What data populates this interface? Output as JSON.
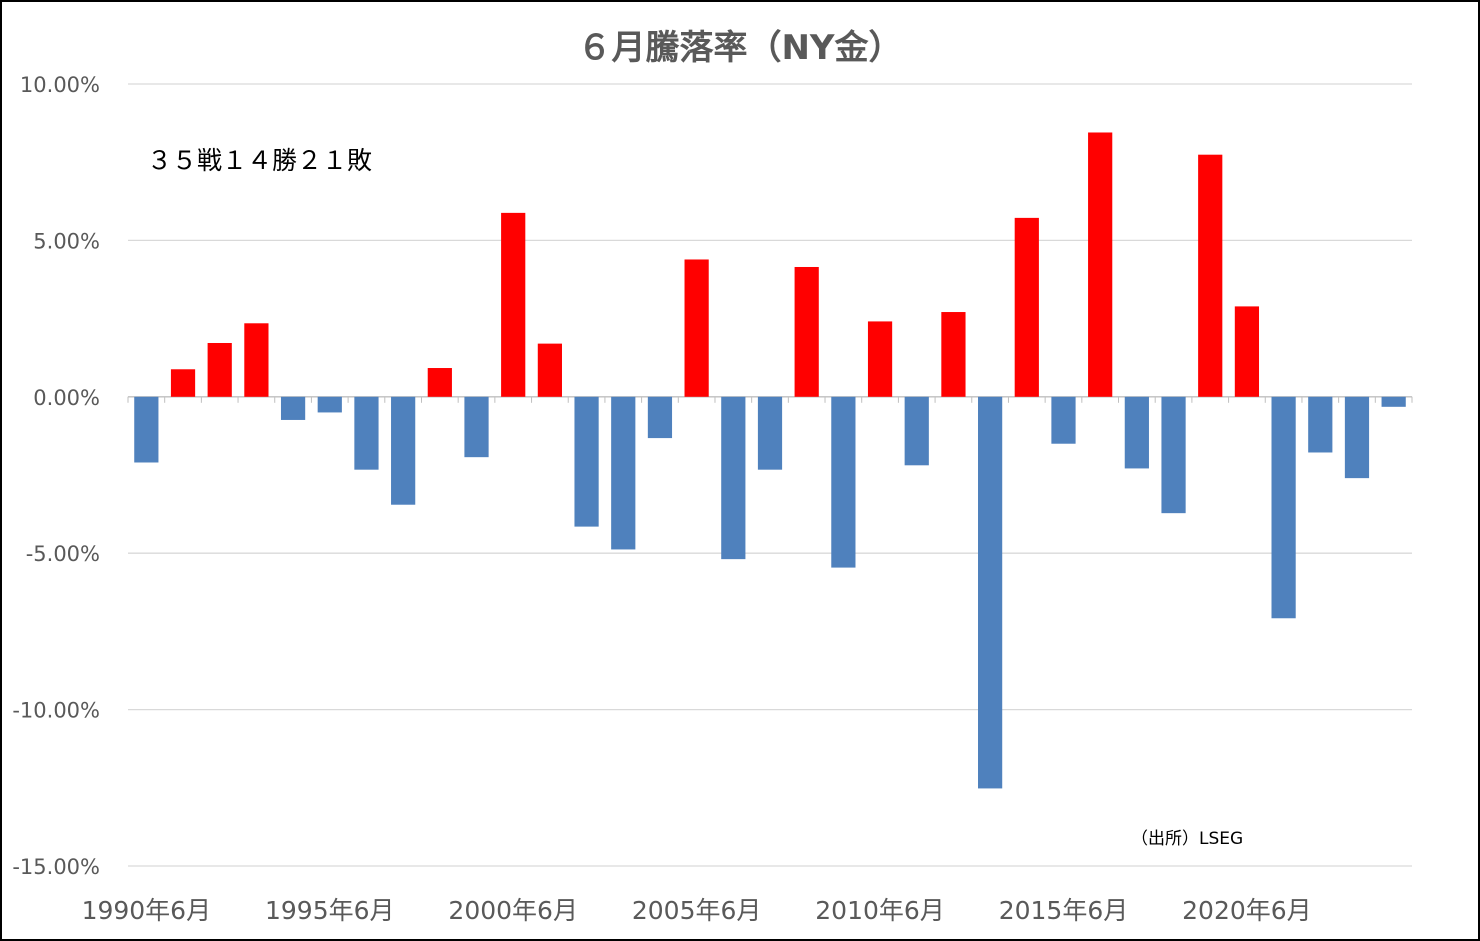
{
  "chart_data": {
    "type": "bar",
    "title": "６月騰落率（NY金）",
    "annotation": "３５戦１４勝２１敗",
    "source": "（出所）LSEG",
    "xlabel": "",
    "ylabel": "",
    "ylim": [
      -15,
      10
    ],
    "y_ticks": [
      10,
      5,
      0,
      -5,
      -10,
      -15
    ],
    "y_tick_labels": [
      "10.00%",
      "5.00%",
      "0.00%",
      "-5.00%",
      "-10.00%",
      "-15.00%"
    ],
    "x_tick_labels": [
      "1990年6月",
      "1995年6月",
      "2000年6月",
      "2005年6月",
      "2010年6月",
      "2015年6月",
      "2020年6月"
    ],
    "grid": true,
    "legend": "none",
    "colors": {
      "positive": "#FF0000",
      "negative": "#4F81BD",
      "grid": "#D9D9D9",
      "text": "#595959"
    },
    "categories": [
      "1990",
      "1991",
      "1992",
      "1993",
      "1994",
      "1995",
      "1996",
      "1997",
      "1998",
      "1999",
      "2000",
      "2001",
      "2002",
      "2003",
      "2004",
      "2005",
      "2006",
      "2007",
      "2008",
      "2009",
      "2010",
      "2011",
      "2012",
      "2013",
      "2014",
      "2015",
      "2016",
      "2017",
      "2018",
      "2019",
      "2020",
      "2021",
      "2022",
      "2023",
      "2024"
    ],
    "values": [
      -2.1,
      0.88,
      1.72,
      2.35,
      -0.74,
      -0.5,
      -2.33,
      -3.45,
      0.92,
      -1.93,
      5.88,
      1.7,
      -4.15,
      -4.88,
      -1.32,
      4.39,
      -5.19,
      -2.33,
      4.15,
      -5.46,
      2.41,
      -2.19,
      2.71,
      -12.52,
      5.72,
      -1.5,
      8.45,
      -2.29,
      -3.72,
      7.74,
      2.89,
      -7.08,
      -1.78,
      -2.6,
      -0.32
    ]
  }
}
